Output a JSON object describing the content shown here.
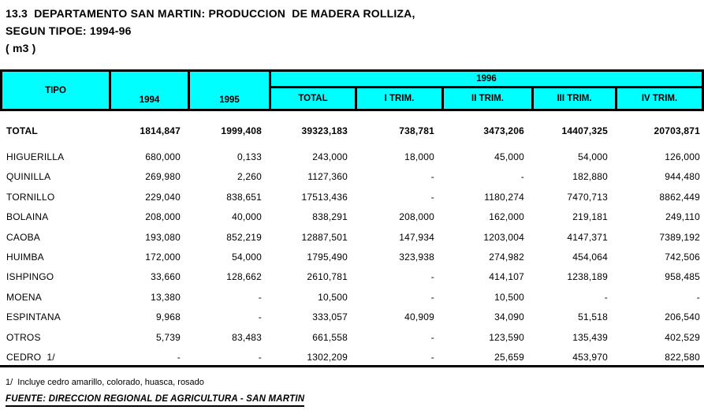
{
  "title": {
    "line1": "13.3  DEPARTAMENTO SAN MARTIN: PRODUCCION  DE MADERA ROLLIZA,",
    "line2": "SEGUN TIPOE: 1994-96",
    "line3": "( m3 )"
  },
  "table": {
    "col_tipo": "TIPO",
    "col_1994": "1994",
    "col_1995": "1995",
    "group_1996": "1996",
    "sub_cols": [
      "TOTAL",
      "I TRIM.",
      "II TRIM.",
      "III TRIM.",
      "IV TRIM."
    ],
    "rows": [
      {
        "tipo": "TOTAL",
        "bold": true,
        "values": [
          "1814,847",
          "1999,408",
          "39323,183",
          "738,781",
          "3473,206",
          "14407,325",
          "20703,871"
        ]
      },
      {
        "tipo": "HIGUERILLA",
        "bold": false,
        "values": [
          "680,000",
          "0,133",
          "243,000",
          "18,000",
          "45,000",
          "54,000",
          "126,000"
        ]
      },
      {
        "tipo": "QUINILLA",
        "bold": false,
        "values": [
          "269,980",
          "2,260",
          "1127,360",
          "-",
          "-",
          "182,880",
          "944,480"
        ]
      },
      {
        "tipo": "TORNILLO",
        "bold": false,
        "values": [
          "229,040",
          "838,651",
          "17513,436",
          "-",
          "1180,274",
          "7470,713",
          "8862,449"
        ]
      },
      {
        "tipo": "BOLAINA",
        "bold": false,
        "values": [
          "208,000",
          "40,000",
          "838,291",
          "208,000",
          "162,000",
          "219,181",
          "249,110"
        ]
      },
      {
        "tipo": "CAOBA",
        "bold": false,
        "values": [
          "193,080",
          "852,219",
          "12887,501",
          "147,934",
          "1203,004",
          "4147,371",
          "7389,192"
        ]
      },
      {
        "tipo": "HUIMBA",
        "bold": false,
        "values": [
          "172,000",
          "54,000",
          "1795,490",
          "323,938",
          "274,982",
          "454,064",
          "742,506"
        ]
      },
      {
        "tipo": "ISHPINGO",
        "bold": false,
        "values": [
          "33,660",
          "128,662",
          "2610,781",
          "-",
          "414,107",
          "1238,189",
          "958,485"
        ]
      },
      {
        "tipo": "MOENA",
        "bold": false,
        "values": [
          "13,380",
          "-",
          "10,500",
          "-",
          "10,500",
          "-",
          "-"
        ]
      },
      {
        "tipo": "ESPINTANA",
        "bold": false,
        "values": [
          "9,968",
          "-",
          "333,057",
          "40,909",
          "34,090",
          "51,518",
          "206,540"
        ]
      },
      {
        "tipo": "OTROS",
        "bold": false,
        "values": [
          "5,739",
          "83,483",
          "661,558",
          "-",
          "123,590",
          "135,439",
          "402,529"
        ]
      },
      {
        "tipo": "CEDRO  1/",
        "bold": false,
        "values": [
          "-",
          "-",
          "1302,209",
          "-",
          "25,659",
          "453,970",
          "822,580"
        ]
      }
    ]
  },
  "footer": {
    "note": "1/  Incluye cedro amarillo, colorado, huasca, rosado",
    "source": "FUENTE: DIRECCION REGIONAL DE AGRICULTURA - SAN MARTIN"
  },
  "colors": {
    "header_bg": "#00FFFF",
    "border": "#000000",
    "text": "#000000",
    "background": "#FFFFFF"
  }
}
